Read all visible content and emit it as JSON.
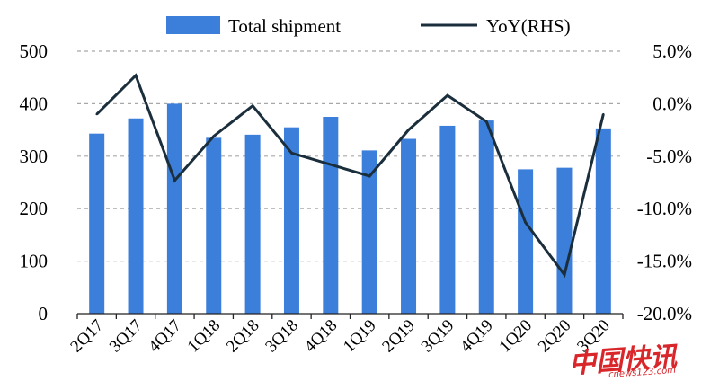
{
  "chart_data": {
    "type": "bar",
    "categories": [
      "2Q17",
      "3Q17",
      "4Q17",
      "1Q18",
      "2Q18",
      "3Q18",
      "4Q18",
      "1Q19",
      "2Q19",
      "3Q19",
      "4Q19",
      "1Q20",
      "2Q20",
      "3Q20"
    ],
    "series": [
      {
        "name": "Total shipment",
        "type": "bar",
        "axis": "left",
        "color": "#3b7fdb",
        "values": [
          343,
          372,
          400,
          335,
          341,
          355,
          375,
          311,
          333,
          358,
          368,
          275,
          278,
          353
        ]
      },
      {
        "name": "YoY(RHS)",
        "type": "line",
        "axis": "right",
        "color": "#1b2e3c",
        "values": [
          -1.0,
          2.7,
          -7.3,
          -3.1,
          -0.2,
          -4.7,
          -5.8,
          -6.9,
          -2.5,
          0.8,
          -1.7,
          -11.3,
          -16.3,
          -1.0
        ]
      }
    ],
    "y_left": {
      "ylim": [
        0,
        500
      ],
      "ticks": [
        "0",
        "100",
        "200",
        "300",
        "400",
        "500"
      ]
    },
    "y_right": {
      "ylim": [
        -20.0,
        5.0
      ],
      "ticks": [
        "-20.0%",
        "-15.0%",
        "-10.0%",
        "-5.0%",
        "0.0%",
        "5.0%"
      ]
    },
    "grid": "horizontal-dashed",
    "legend_position": "top"
  },
  "watermark": {
    "text": "中国快讯",
    "subtext": "cnews123.com",
    "color": "#d8262b"
  }
}
